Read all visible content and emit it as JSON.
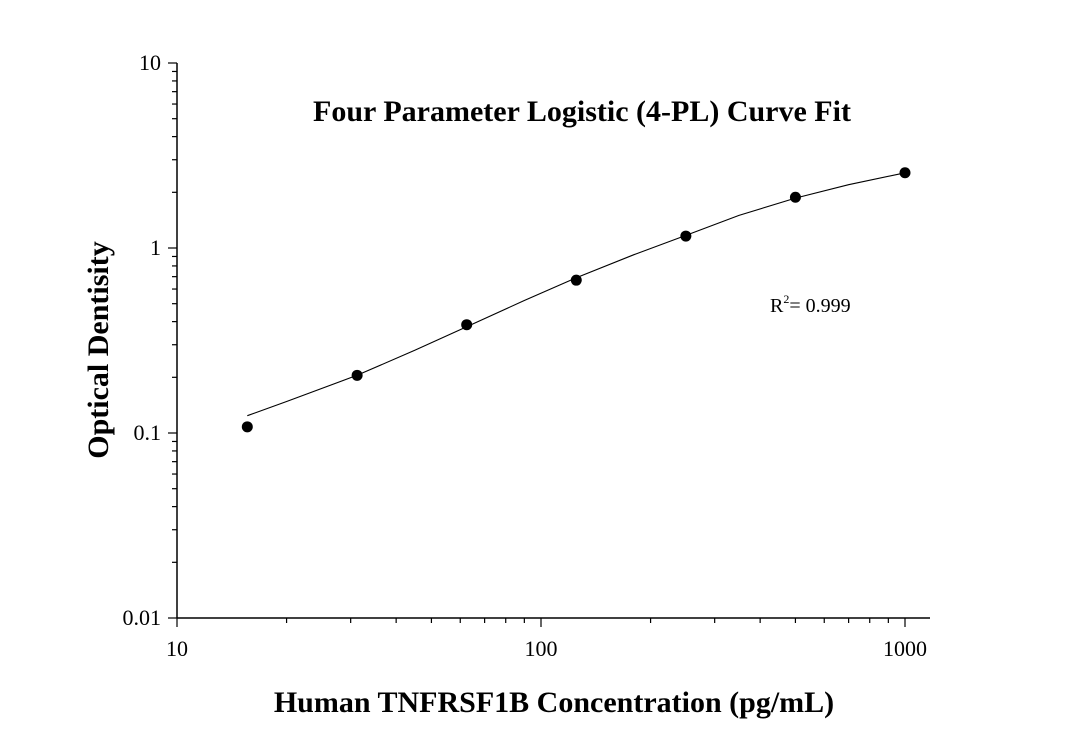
{
  "chart_data": {
    "type": "scatter",
    "title": "Four Parameter Logistic (4-PL) Curve Fit",
    "xlabel": "Human TNFRSF1B Concentration (pg/mL)",
    "ylabel": "Optical Dentisity",
    "x_scale": "log",
    "y_scale": "log",
    "xlim": [
      10,
      1000
    ],
    "ylim": [
      0.01,
      10
    ],
    "x_ticks": [
      {
        "value": 10,
        "label": "10"
      },
      {
        "value": 100,
        "label": "100"
      },
      {
        "value": 1000,
        "label": "1000"
      }
    ],
    "y_ticks": [
      {
        "value": 0.01,
        "label": "0.01"
      },
      {
        "value": 0.1,
        "label": "0.1"
      },
      {
        "value": 1,
        "label": "1"
      },
      {
        "value": 10,
        "label": "10"
      }
    ],
    "points": [
      {
        "x": 15.6,
        "y": 0.108
      },
      {
        "x": 31.25,
        "y": 0.205
      },
      {
        "x": 62.5,
        "y": 0.385
      },
      {
        "x": 125,
        "y": 0.67
      },
      {
        "x": 250,
        "y": 1.16
      },
      {
        "x": 500,
        "y": 1.88
      },
      {
        "x": 1000,
        "y": 2.55
      }
    ],
    "fit_curve": [
      {
        "x": 15.6,
        "y": 0.124
      },
      {
        "x": 20,
        "y": 0.148
      },
      {
        "x": 31.25,
        "y": 0.205
      },
      {
        "x": 45,
        "y": 0.28
      },
      {
        "x": 62.5,
        "y": 0.375
      },
      {
        "x": 90,
        "y": 0.52
      },
      {
        "x": 125,
        "y": 0.69
      },
      {
        "x": 180,
        "y": 0.92
      },
      {
        "x": 250,
        "y": 1.17
      },
      {
        "x": 350,
        "y": 1.5
      },
      {
        "x": 500,
        "y": 1.86
      },
      {
        "x": 700,
        "y": 2.2
      },
      {
        "x": 1000,
        "y": 2.55
      }
    ],
    "annotation": {
      "prefix": "R",
      "sup": "2",
      "text": "= 0.999"
    },
    "grid": false,
    "legend": "none",
    "colors": {
      "marker": "#000000",
      "line": "#000000",
      "axis": "#000000"
    }
  }
}
